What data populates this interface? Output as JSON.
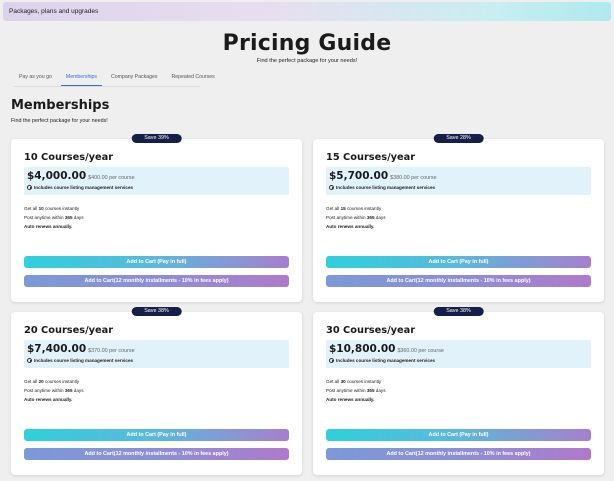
{
  "banner": {
    "text": "Packages, plans and upgrades"
  },
  "hero": {
    "title": "Pricing Guide",
    "subtitle": "Find the perfect package for your needs!"
  },
  "tabs": [
    {
      "label": "Pay as you go",
      "active": false
    },
    {
      "label": "Memberships",
      "active": true
    },
    {
      "label": "Company Packages",
      "active": false
    },
    {
      "label": "Repeated Courses",
      "active": false
    }
  ],
  "section": {
    "title": "Memberships",
    "subtitle": "Find the perfect package for your needs!"
  },
  "common": {
    "includes": "Includes course listing management services",
    "get_all_pre": "Get all ",
    "get_all_post": " courses instantly",
    "post_pre": "Post anytime within ",
    "post_days": "365",
    "post_post": " days",
    "auto_renew": "Auto renews annually.",
    "btn_full": "Add to Cart (Pay in full)",
    "btn_installments": "Add to Cart(12 monthly installments - 10% in fees apply)"
  },
  "plans": [
    {
      "badge": "Save 39%",
      "title": "10 Courses/year",
      "price": "$4,000.00",
      "per_course": "$400.00 per course",
      "count": "10"
    },
    {
      "badge": "Save 28%",
      "title": "15 Courses/year",
      "price": "$5,700.00",
      "per_course": "$380.00 per course",
      "count": "15"
    },
    {
      "badge": "Save 38%",
      "title": "20 Courses/year",
      "price": "$7,400.00",
      "per_course": "$370.00 per course",
      "count": "20"
    },
    {
      "badge": "Save 38%",
      "title": "30 Courses/year",
      "price": "$10,800.00",
      "per_course": "$360.00 per course",
      "count": "30"
    }
  ],
  "colors": {
    "badge_bg": "#14204a",
    "active_tab": "#3b6bd9",
    "price_box": "#e2f2fb"
  }
}
